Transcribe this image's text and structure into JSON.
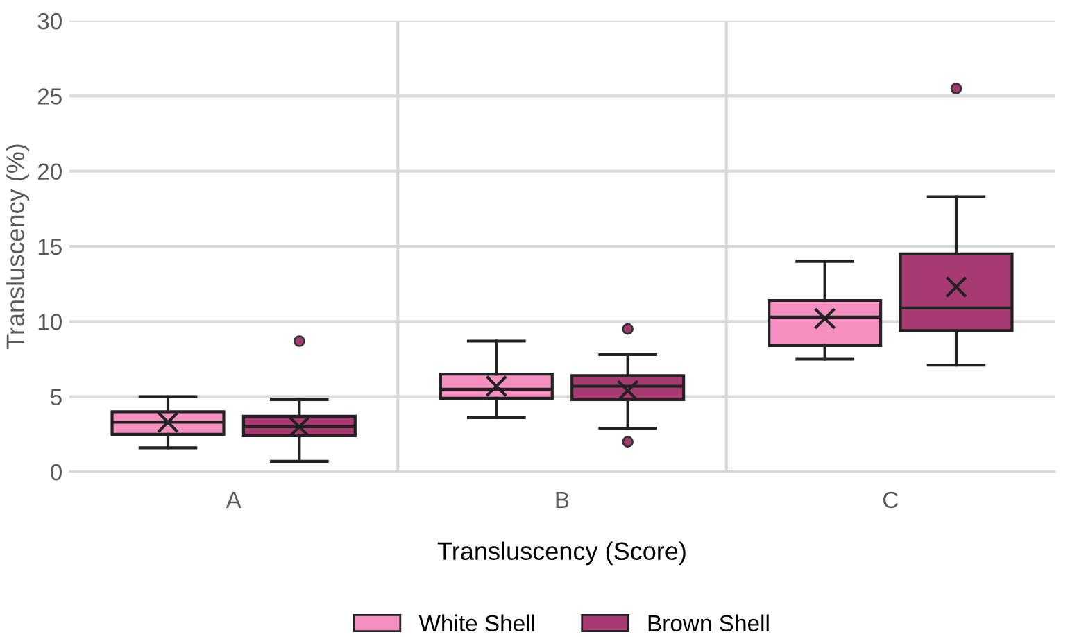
{
  "chart_data": {
    "type": "box",
    "xlabel": "Transluscency (Score)",
    "ylabel": "Transluscency (%)",
    "categories": [
      "A",
      "B",
      "C"
    ],
    "ylim": [
      0,
      30
    ],
    "yticks": [
      0,
      5,
      10,
      15,
      20,
      25,
      30
    ],
    "grid": true,
    "legend": "bottom",
    "series": [
      {
        "name": "White Shell",
        "color": "#f48fbf",
        "boxes": [
          {
            "low": 1.6,
            "q1": 2.5,
            "median": 3.3,
            "q3": 4.0,
            "high": 5.0,
            "mean": 3.3
          },
          {
            "low": 3.6,
            "q1": 4.9,
            "median": 5.5,
            "q3": 6.5,
            "high": 8.7,
            "mean": 5.7
          },
          {
            "low": 7.5,
            "q1": 8.4,
            "median": 10.3,
            "q3": 11.4,
            "high": 14.0,
            "mean": 10.2
          }
        ]
      },
      {
        "name": "Brown Shell",
        "color": "#a83a72",
        "boxes": [
          {
            "low": 0.7,
            "q1": 2.4,
            "median": 3.0,
            "q3": 3.7,
            "high": 4.8,
            "mean": 3.0,
            "outliers": [
              8.7
            ]
          },
          {
            "low": 2.9,
            "q1": 4.8,
            "median": 5.7,
            "q3": 6.4,
            "high": 7.8,
            "mean": 5.4,
            "outliers": [
              9.5,
              2.0
            ]
          },
          {
            "low": 7.1,
            "q1": 9.4,
            "median": 10.9,
            "q3": 14.5,
            "high": 18.3,
            "mean": 12.3,
            "outliers": [
              25.5
            ]
          }
        ]
      }
    ]
  }
}
